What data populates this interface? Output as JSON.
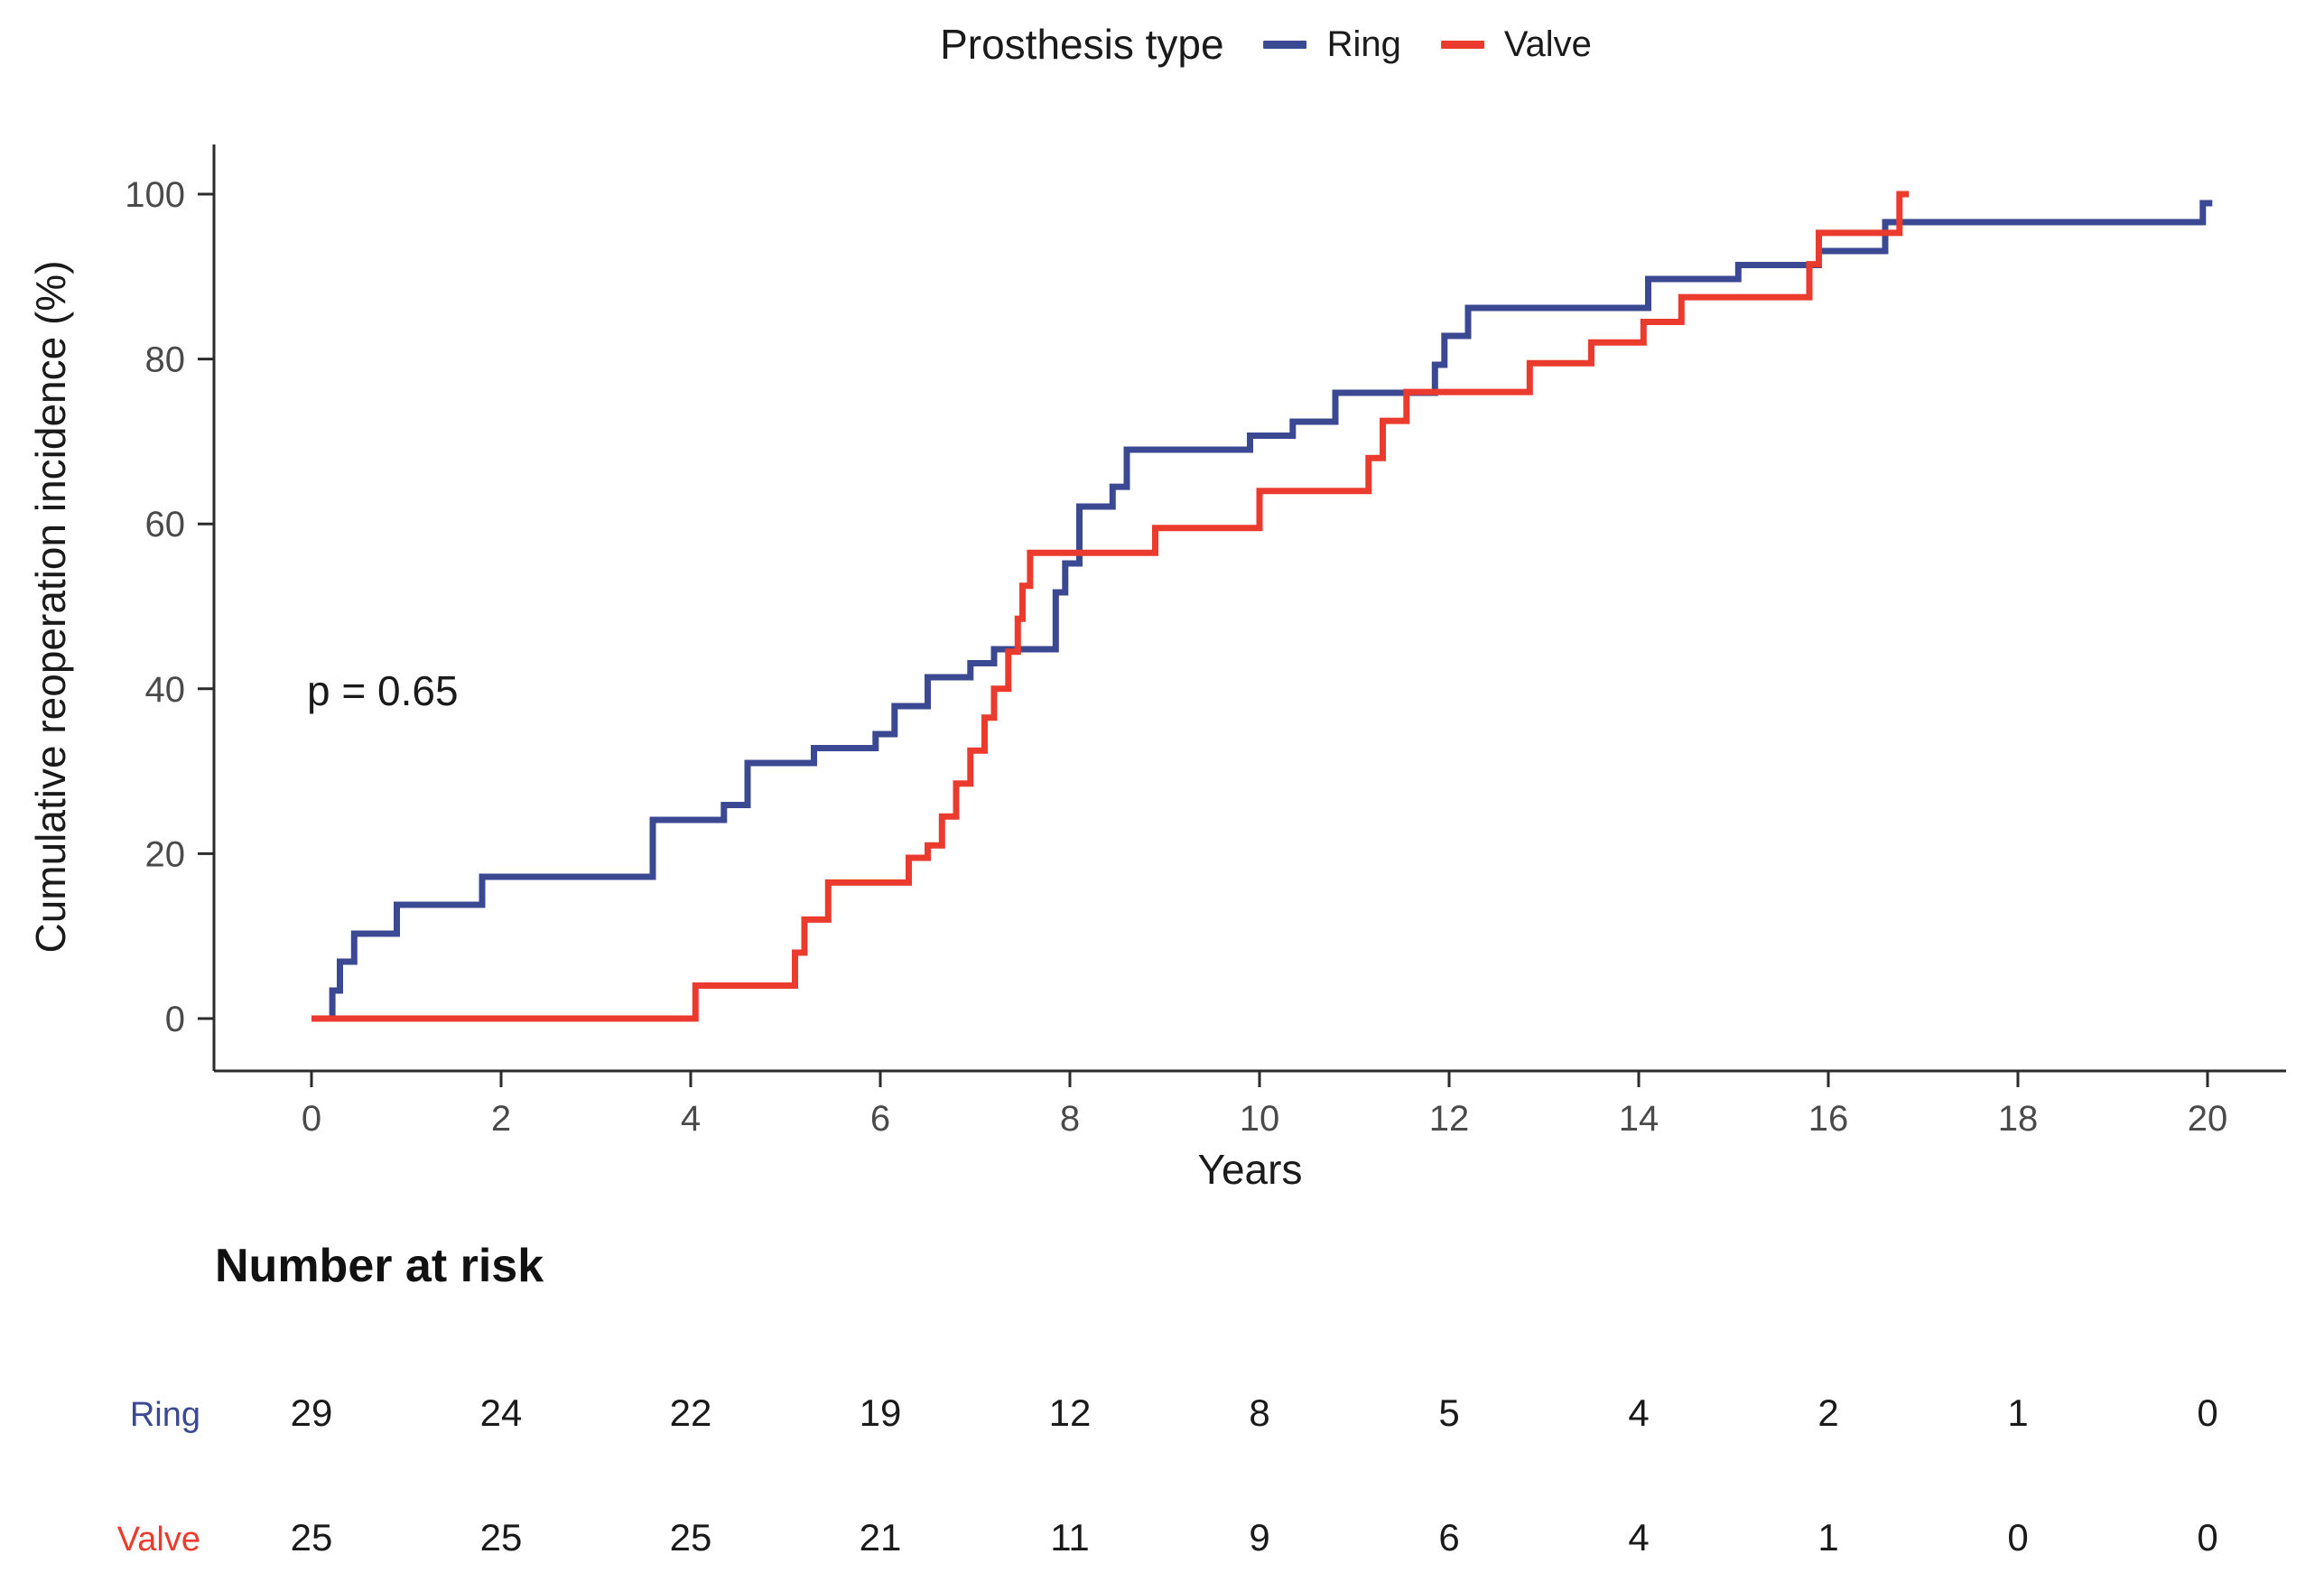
{
  "chart_data": {
    "type": "line",
    "subtype": "kaplan-meier-step",
    "legend_title": "Prosthesis type",
    "xlabel": "Years",
    "ylabel": "Cumulative reoperation incidence (%)",
    "annotation": "p = 0.65",
    "xlim": [
      0,
      20
    ],
    "ylim": [
      0,
      100
    ],
    "x_ticks": [
      0,
      2,
      4,
      6,
      8,
      10,
      12,
      14,
      16,
      18,
      20
    ],
    "y_ticks": [
      0,
      20,
      40,
      60,
      80,
      100
    ],
    "grid": false,
    "legend_position": "top",
    "series": [
      {
        "name": "Ring",
        "color": "#3B4992",
        "end_x": 20.05,
        "points": [
          [
            0.2,
            0
          ],
          [
            0.22,
            3.4
          ],
          [
            0.3,
            6.9
          ],
          [
            0.45,
            10.3
          ],
          [
            0.9,
            13.8
          ],
          [
            1.8,
            17.2
          ],
          [
            3.6,
            24.1
          ],
          [
            4.35,
            25.9
          ],
          [
            4.6,
            31.0
          ],
          [
            5.3,
            32.8
          ],
          [
            5.95,
            34.5
          ],
          [
            6.15,
            37.9
          ],
          [
            6.5,
            41.4
          ],
          [
            6.95,
            43.1
          ],
          [
            7.2,
            44.8
          ],
          [
            7.85,
            51.7
          ],
          [
            7.95,
            55.2
          ],
          [
            8.1,
            62.1
          ],
          [
            8.45,
            64.5
          ],
          [
            8.6,
            69.0
          ],
          [
            9.9,
            70.7
          ],
          [
            10.35,
            72.4
          ],
          [
            10.8,
            75.9
          ],
          [
            11.85,
            79.3
          ],
          [
            11.95,
            82.8
          ],
          [
            12.2,
            86.2
          ],
          [
            14.1,
            89.7
          ],
          [
            15.05,
            91.4
          ],
          [
            15.9,
            93.1
          ],
          [
            16.6,
            96.6
          ],
          [
            19.95,
            98.9
          ]
        ]
      },
      {
        "name": "Valve",
        "color": "#EA3B2E",
        "end_x": 16.85,
        "points": [
          [
            0.0,
            0
          ],
          [
            4.05,
            4
          ],
          [
            5.1,
            8
          ],
          [
            5.2,
            12
          ],
          [
            5.45,
            16.5
          ],
          [
            6.3,
            19.5
          ],
          [
            6.5,
            21
          ],
          [
            6.65,
            24.5
          ],
          [
            6.8,
            28.5
          ],
          [
            6.95,
            32.5
          ],
          [
            7.1,
            36.5
          ],
          [
            7.2,
            40
          ],
          [
            7.35,
            44.5
          ],
          [
            7.45,
            48.5
          ],
          [
            7.5,
            52.5
          ],
          [
            7.58,
            56.5
          ],
          [
            8.9,
            59.5
          ],
          [
            10.0,
            64
          ],
          [
            11.15,
            68
          ],
          [
            11.3,
            72.5
          ],
          [
            11.55,
            76
          ],
          [
            12.85,
            79.5
          ],
          [
            13.5,
            82
          ],
          [
            14.05,
            84.5
          ],
          [
            14.45,
            87.5
          ],
          [
            15.8,
            91.5
          ],
          [
            15.9,
            95.3
          ],
          [
            16.75,
            100
          ]
        ]
      }
    ],
    "number_at_risk": {
      "title": "Number at risk",
      "times": [
        0,
        2,
        4,
        6,
        8,
        10,
        12,
        14,
        16,
        18,
        20
      ],
      "rows": [
        {
          "label": "Ring",
          "color": "#3B4992",
          "counts": [
            29,
            24,
            22,
            19,
            12,
            8,
            5,
            4,
            2,
            1,
            0
          ]
        },
        {
          "label": "Valve",
          "color": "#EA3B2E",
          "counts": [
            25,
            25,
            25,
            21,
            11,
            9,
            6,
            4,
            1,
            0,
            0
          ]
        }
      ]
    }
  }
}
